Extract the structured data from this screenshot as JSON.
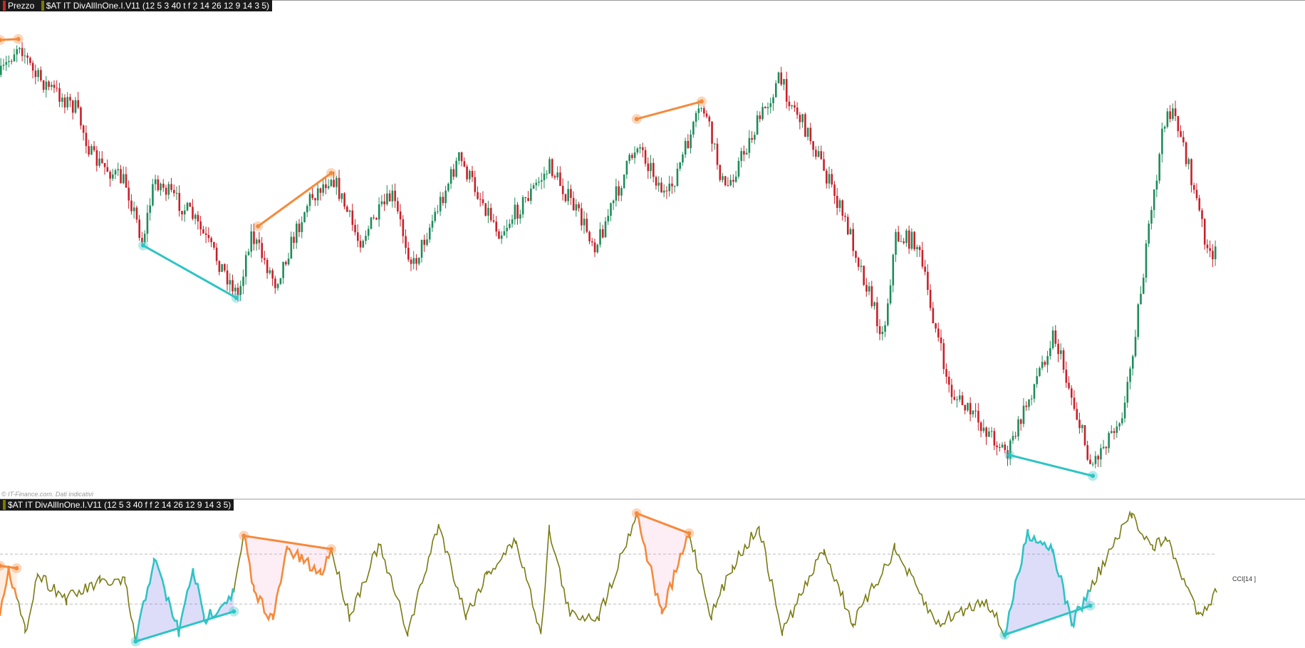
{
  "header": {
    "price_pane_label": "Prezzo",
    "price_indicator_label": "$AT IT DivAllInOne.I.V11 (12 5 3 40 t f 2 14 26 12 9 14 3 5)",
    "copyright": "© IT-Finance.com. Dati indicativi"
  },
  "oscillator": {
    "indicator_label": "$AT IT DivAllInOne.I.V11 (12 5 3 40 f f 2 14 26 12 9 14 3 5)",
    "series_label": "CCI[14 ]"
  }
}
